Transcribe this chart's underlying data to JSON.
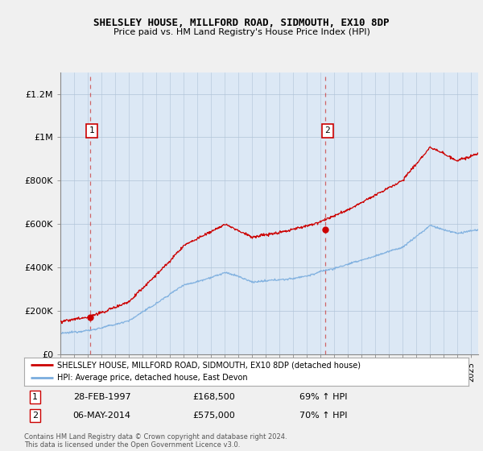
{
  "title": "SHELSLEY HOUSE, MILLFORD ROAD, SIDMOUTH, EX10 8DP",
  "subtitle": "Price paid vs. HM Land Registry's House Price Index (HPI)",
  "legend_label_red": "SHELSLEY HOUSE, MILLFORD ROAD, SIDMOUTH, EX10 8DP (detached house)",
  "legend_label_blue": "HPI: Average price, detached house, East Devon",
  "sale1_date": "28-FEB-1997",
  "sale1_price": "£168,500",
  "sale1_hpi": "69% ↑ HPI",
  "sale1_year": 1997.15,
  "sale1_value": 168500,
  "sale2_date": "06-MAY-2014",
  "sale2_price": "£575,000",
  "sale2_hpi": "70% ↑ HPI",
  "sale2_year": 2014.35,
  "sale2_value": 575000,
  "ylim_min": 0,
  "ylim_max": 1300000,
  "xlim_min": 1995.0,
  "xlim_max": 2025.5,
  "yticks": [
    0,
    200000,
    400000,
    600000,
    800000,
    1000000,
    1200000
  ],
  "ytick_labels": [
    "£0",
    "£200K",
    "£400K",
    "£600K",
    "£800K",
    "£1M",
    "£1.2M"
  ],
  "plot_bg_color": "#dce8f5",
  "fig_bg_color": "#f0f0f0",
  "red_color": "#cc0000",
  "blue_color": "#7aadde",
  "footnote": "Contains HM Land Registry data © Crown copyright and database right 2024.\nThis data is licensed under the Open Government Licence v3.0."
}
